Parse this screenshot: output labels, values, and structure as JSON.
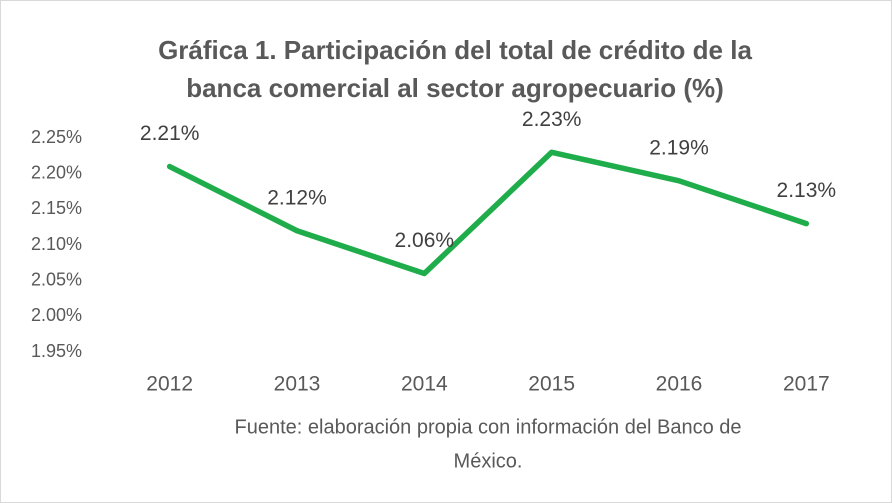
{
  "chart_data": {
    "type": "line",
    "title": [
      "Gráfica 1. Participación del total de crédito de la",
      "banca comercial al sector agropecuario (%)"
    ],
    "source": [
      "Fuente: elaboración propia con información del Banco de",
      "México."
    ],
    "categories": [
      "2012",
      "2013",
      "2014",
      "2015",
      "2016",
      "2017"
    ],
    "series": [
      {
        "color": "#1fad4b",
        "values": [
          2.21,
          2.12,
          2.06,
          2.23,
          2.19,
          2.13
        ],
        "value_labels": [
          "2.21%",
          "2.12%",
          "2.06%",
          "2.23%",
          "2.19%",
          "2.13%"
        ]
      }
    ],
    "ylim": [
      1.95,
      2.25
    ],
    "yticks": [
      {
        "value": 1.95,
        "label": "1.95%"
      },
      {
        "value": 2.0,
        "label": "2.00%"
      },
      {
        "value": 2.05,
        "label": "2.05%"
      },
      {
        "value": 2.1,
        "label": "2.10%"
      },
      {
        "value": 2.15,
        "label": "2.15%"
      },
      {
        "value": 2.2,
        "label": "2.20%"
      },
      {
        "value": 2.25,
        "label": "2.25%"
      }
    ],
    "grid": false
  }
}
